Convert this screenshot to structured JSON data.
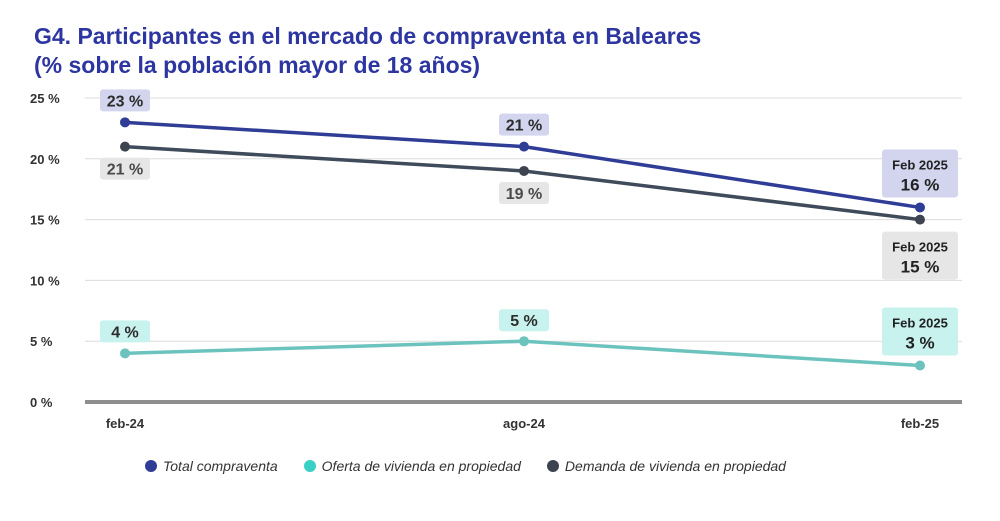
{
  "title": {
    "line1": "G4. Participantes en el mercado de compraventa en Baleares",
    "line2": "(% sobre la población mayor de 18 años)"
  },
  "chart_data": {
    "type": "line",
    "categories": [
      "feb-24",
      "ago-24",
      "feb-25"
    ],
    "ylim": [
      0,
      25
    ],
    "yticks": [
      0,
      5,
      10,
      15,
      20,
      25
    ],
    "ytick_labels": [
      "0 %",
      "5 %",
      "10 %",
      "15 %",
      "20 %",
      "25 %"
    ],
    "series": [
      {
        "name": "Total compraventa",
        "values": [
          23,
          21,
          16
        ],
        "labels": [
          "23 %",
          "21 %",
          "16 %"
        ],
        "final_label_title": "Feb 2025",
        "line_color": "#2f3d96",
        "marker_color": "#2f3d96",
        "legend_color": "#2f3d96",
        "label_bg": "#d3d5ef",
        "label_color": "#2d2d2d"
      },
      {
        "name": "Oferta de vivienda en propiedad",
        "values": [
          4,
          5,
          3
        ],
        "labels": [
          "4 %",
          "5 %",
          "3 %"
        ],
        "final_label_title": "Feb 2025",
        "line_color": "#6cc3bd",
        "marker_color": "#6cc3bd",
        "legend_color": "#3ad0c5",
        "label_bg": "#c8f2ee",
        "label_color": "#2d2d2d"
      },
      {
        "name": "Demanda de vivienda en propiedad",
        "values": [
          21,
          19,
          15
        ],
        "labels": [
          "21 %",
          "19 %",
          "15 %"
        ],
        "final_label_title": "Feb 2025",
        "line_color": "#3f4a5a",
        "marker_color": "#3d4450",
        "legend_color": "#3d4450",
        "label_bg": "#e6e6e6",
        "label_color": "#4a4a4a"
      }
    ]
  }
}
